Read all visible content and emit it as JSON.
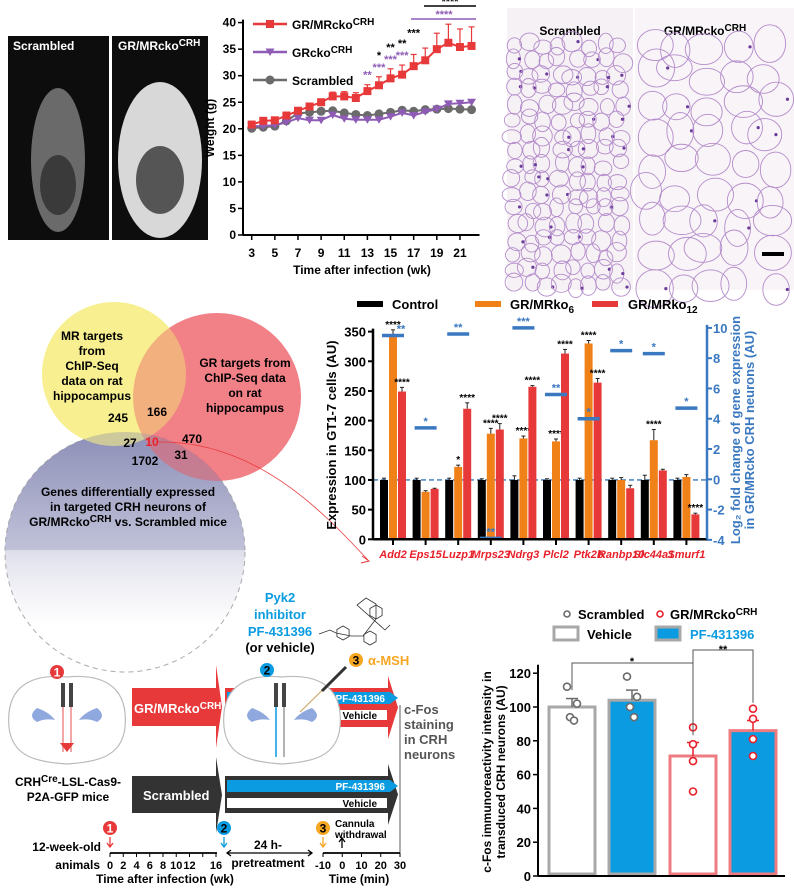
{
  "colors": {
    "red": "#e8393a",
    "purple": "#8e5bb5",
    "grey": "#6b6b6b",
    "orange": "#f08018",
    "blue_axis": "#3a78c0",
    "cyan": "#0a9be0",
    "yellow": "#f7ee8a",
    "pink": "#ee7b80",
    "gene_label": "#e8202a"
  },
  "mri": {
    "label_left": "Scrambled",
    "label_right": "GR/MRcko",
    "label_right_sup": "CRH"
  },
  "histology": {
    "label_left": "Scrambled",
    "label_right": "GR/MRcko",
    "label_right_sup": "CRH"
  },
  "venn": {
    "mr_label": [
      "MR targets",
      "from",
      "ChIP-Seq",
      "data on rat",
      "hippocampus"
    ],
    "gr_label": [
      "GR targets from",
      "ChIP-Seq data",
      "on rat",
      "hippocampus"
    ],
    "deg_label": [
      "Genes differentially expressed",
      "in targeted CRH neurons of"
    ],
    "deg_label_last": "GR/MRcko",
    "deg_label_sup": "CRH",
    "deg_label_end": " vs. Scrambled mice",
    "counts": {
      "mr_only": "245",
      "mr_gr": "166",
      "gr_only": "470",
      "mr_deg": "27",
      "all": "10",
      "gr_deg": "31",
      "deg_only": "1702"
    }
  },
  "chart_data": [
    {
      "type": "line",
      "xlabel": "Time after infection (wk)",
      "ylabel": "Weight (g)",
      "xlim": [
        3,
        22
      ],
      "ylim": [
        0,
        40
      ],
      "xticks": [
        "3",
        "5",
        "7",
        "9",
        "11",
        "13",
        "15",
        "17",
        "19",
        "21"
      ],
      "yticks": [
        "0",
        "5",
        "10",
        "15",
        "20",
        "25",
        "30",
        "35",
        "40"
      ],
      "x": [
        3,
        4,
        5,
        6,
        7,
        8,
        9,
        10,
        11,
        12,
        13,
        14,
        15,
        16,
        17,
        18,
        19,
        20,
        21,
        22
      ],
      "legend": "top-left",
      "series": [
        {
          "name": "GR/MRcko",
          "name_sup": "CRH",
          "color": "#e8393a",
          "marker": "square",
          "values": [
            20.8,
            21.5,
            21.6,
            22.5,
            23.4,
            24.2,
            25.0,
            26.1,
            26.1,
            25.8,
            27.1,
            28.2,
            29.5,
            30.2,
            31.8,
            32.9,
            35.0,
            36.2,
            35.4,
            35.6
          ],
          "error": [
            0.4,
            0.4,
            0.4,
            0.5,
            0.5,
            0.6,
            0.6,
            0.8,
            0.9,
            1.0,
            1.2,
            1.6,
            1.8,
            1.8,
            2.2,
            2.3,
            3.0,
            3.5,
            3.4,
            3.6
          ]
        },
        {
          "name": "GRcko",
          "name_sup": "CRH",
          "color": "#8e5bb5",
          "marker": "triangle-down",
          "values": [
            20.5,
            20.5,
            20.7,
            21.2,
            22.0,
            21.6,
            21.6,
            22.6,
            21.9,
            21.7,
            21.7,
            21.7,
            22.3,
            23.0,
            22.5,
            23.2,
            23.7,
            24.7,
            24.8,
            25.0
          ]
        },
        {
          "name": "Scrambled",
          "name_sup": "",
          "color": "#6b6b6b",
          "marker": "circle",
          "values": [
            20.1,
            20.3,
            20.5,
            21.5,
            22.9,
            23.1,
            23.3,
            23.4,
            23.0,
            22.7,
            22.5,
            22.8,
            23.1,
            23.5,
            23.3,
            23.6,
            23.7,
            23.8,
            23.7,
            23.6
          ]
        }
      ],
      "annotations": [
        {
          "x": 13,
          "text": "**",
          "color": "#8e5bb5"
        },
        {
          "x": 14,
          "text": "***",
          "color": "#8e5bb5"
        },
        {
          "x": 14,
          "text": "*",
          "color": "#000000"
        },
        {
          "x": 15,
          "text": "***",
          "color": "#8e5bb5"
        },
        {
          "x": 15,
          "text": "**",
          "color": "#000000"
        },
        {
          "x": 16,
          "text": "***",
          "color": "#8e5bb5"
        },
        {
          "x": 16,
          "text": "**",
          "color": "#000000"
        },
        {
          "x": 17,
          "text": "***",
          "color": "#000000"
        }
      ],
      "brackets": [
        {
          "from": 18,
          "to": 22,
          "text": "****",
          "color": "#000000"
        },
        {
          "from": 17,
          "to": 22,
          "text": "****",
          "color": "#8e5bb5"
        }
      ]
    },
    {
      "type": "bar",
      "ylabel": "Expression in GT1-7 cells (AU)",
      "ylabel_right": [
        "Log₂ fold change of gene expression",
        "in GR/MRcko CRH neurons (AU)"
      ],
      "ylim": [
        0,
        350
      ],
      "ylim_right": [
        -4,
        10
      ],
      "yticks": [
        "0",
        "50",
        "100",
        "150",
        "200",
        "250",
        "300",
        "350"
      ],
      "yticks_right": [
        "-4",
        "-2",
        "0",
        "2",
        "4",
        "6",
        "8",
        "10"
      ],
      "categories": [
        "Add2",
        "Eps15",
        "Luzp1",
        "Mrps23",
        "Ndrg3",
        "Plcl2",
        "Ptk2b",
        "Ranbp10",
        "Slc44a1",
        "Smurf1"
      ],
      "legend": "top",
      "series": [
        {
          "name": "Control",
          "name_sub": "",
          "color": "#000000",
          "values": [
            100,
            100,
            100,
            100,
            100,
            100,
            100,
            100,
            100,
            100
          ],
          "error": [
            3,
            3,
            3,
            2,
            7,
            2,
            3,
            3,
            8,
            3
          ],
          "stars": [
            "",
            "",
            "",
            "",
            "",
            "",
            "",
            "",
            "",
            ""
          ]
        },
        {
          "name": "GR/MRko",
          "name_sub": "6",
          "color": "#f08018",
          "values": [
            345,
            80,
            122,
            178,
            170,
            165,
            330,
            100,
            167,
            105
          ],
          "error": [
            8,
            2,
            3,
            9,
            4,
            4,
            5,
            4,
            18,
            4
          ],
          "stars": [
            "****",
            "",
            "*",
            "****",
            "****",
            "****",
            "****",
            "",
            "****",
            ""
          ]
        },
        {
          "name": "GR/MRko",
          "name_sub": "12",
          "color": "#e8393a",
          "values": [
            249,
            85,
            220,
            185,
            257,
            313,
            264,
            86,
            116,
            42
          ],
          "error": [
            7,
            1,
            10,
            10,
            2,
            7,
            7,
            5,
            2,
            2
          ],
          "stars": [
            "****",
            "",
            "****",
            "****",
            "****",
            "****",
            "****",
            "",
            "",
            "****"
          ]
        }
      ],
      "log2_fold_change": {
        "color": "#3a78c0",
        "values": [
          9.5,
          3.4,
          9.6,
          -3.9,
          10.0,
          5.6,
          4.0,
          8.5,
          8.3,
          4.7
        ],
        "stars": [
          "**",
          "*",
          "**",
          "**",
          "***",
          "**",
          "*",
          "*",
          "*",
          "*"
        ]
      }
    },
    {
      "type": "bar",
      "ylabel": [
        "c-Fos immunoreactivity intensity in",
        "transduced CRH neurons (AU)"
      ],
      "ylim": [
        0,
        125
      ],
      "yticks": [
        "0",
        "20",
        "40",
        "60",
        "80",
        "100",
        "120"
      ],
      "legend": "top",
      "legend_groups": [
        {
          "name": "Scrambled",
          "name_sup": "",
          "color": "#6b6b6b"
        },
        {
          "name": "GR/MRcko",
          "name_sup": "CRH",
          "color": "#e8202a"
        }
      ],
      "legend_treatments": [
        {
          "name": "Vehicle",
          "fill": "#ffffff"
        },
        {
          "name": "PF-431396",
          "fill": "#0a9be0"
        }
      ],
      "bars": [
        {
          "group": "Scrambled",
          "treatment": "Vehicle",
          "value": 100,
          "error": 5,
          "points": [
            112,
            102,
            94,
            92
          ]
        },
        {
          "group": "Scrambled",
          "treatment": "PF-431396",
          "value": 104,
          "error": 6,
          "points": [
            118,
            106,
            100,
            94
          ]
        },
        {
          "group": "GR/MRcko",
          "treatment": "Vehicle",
          "value": 71,
          "error": 8,
          "points": [
            88,
            78,
            68,
            50
          ]
        },
        {
          "group": "GR/MRcko",
          "treatment": "PF-431396",
          "value": 86,
          "error": 6,
          "points": [
            99,
            93,
            81,
            71
          ]
        }
      ],
      "significance": [
        {
          "from": 0,
          "to": 2,
          "text": "*"
        },
        {
          "from": 2,
          "to": 3,
          "text": "**"
        }
      ]
    }
  ],
  "schematic": {
    "inhibitor": [
      "Pyk2",
      "inhibitor",
      "PF-431396"
    ],
    "or_vehicle": "(or vehicle)",
    "step1": "1",
    "step2": "2",
    "step3": "3",
    "alpha_msh": "α-MSH",
    "arrow_ko": "GR/MRcko",
    "arrow_ko_sup": "CRH",
    "arrow_scr": "Scrambled",
    "pf_label": "PF-431396",
    "vehicle_label": "Vehicle",
    "readout": [
      "c-Fos",
      "staining",
      "in CRH",
      "neurons"
    ],
    "mice_line1": "CRH",
    "mice_line1_sup": "Cre",
    "mice_line1_end": "-LSL-Cas9-",
    "mice_line2": "P2A-GFP mice",
    "age": [
      "12-week-old",
      "animals"
    ],
    "pretreat": [
      "24 h-",
      "pretreatment"
    ],
    "cannula": [
      "Cannula",
      "withdrawal"
    ],
    "axis1_ticks": [
      "0",
      "2",
      "4",
      "6",
      "8",
      "10",
      "12",
      "16"
    ],
    "axis1_ticks_full": [
      "0",
      "2",
      "4",
      "6",
      "8",
      "10",
      "12",
      "14",
      "16"
    ],
    "axis1_label": "Time after infection (wk)",
    "axis2_ticks": [
      "-10",
      "0",
      "10",
      "20",
      "30"
    ],
    "axis2_label": "Time (min)"
  }
}
